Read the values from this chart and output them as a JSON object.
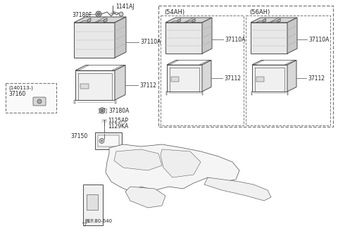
{
  "bg_color": "#ffffff",
  "line_color": "#4a4a4a",
  "dash_color": "#777777",
  "text_color": "#222222",
  "parts": {
    "p1141AJ": "1141AJ",
    "p37180F": "37180F",
    "p37110A_main": "37110A",
    "p37112_main": "37112",
    "p37160": "37160",
    "p140113": "(140113-)",
    "p37180A": "37180A",
    "p1125AP": "1125AP",
    "p1129KA": "1129KA",
    "p37150": "37150",
    "pREF": "REF.80-640",
    "p54AH": "(54AH)",
    "p56AH": "(56AH)",
    "p37110A_54": "37110A",
    "p37110A_56": "37110A",
    "p37112_54": "37112",
    "p37112_56": "37112"
  }
}
